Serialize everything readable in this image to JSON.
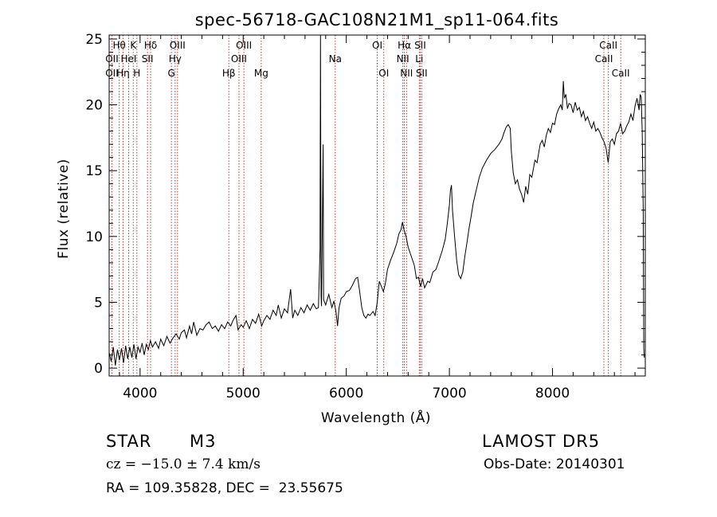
{
  "chart_data": {
    "type": "line",
    "title": "spec-56718-GAC108N21M1_sp11-064.fits",
    "xlabel": "Wavelength (Å)",
    "ylabel": "Flux (relative)",
    "xlim": [
      3700,
      8900
    ],
    "ylim": [
      -0.6,
      25.3
    ],
    "xticks": [
      4000,
      5000,
      6000,
      7000,
      8000
    ],
    "yticks": [
      0,
      5,
      10,
      15,
      20,
      25
    ],
    "x_minor_step": 200,
    "y_minor_step": 1,
    "grid": false,
    "legend": "none",
    "series": [
      {
        "values": [
          [
            3700,
            1.2
          ],
          [
            3720,
            0.5
          ],
          [
            3740,
            1.6
          ],
          [
            3760,
            0.2
          ],
          [
            3780,
            1.4
          ],
          [
            3800,
            0.6
          ],
          [
            3820,
            1.5
          ],
          [
            3840,
            0.4
          ],
          [
            3860,
            1.7
          ],
          [
            3880,
            0.7
          ],
          [
            3900,
            1.6
          ],
          [
            3920,
            0.8
          ],
          [
            3940,
            1.8
          ],
          [
            3960,
            0.7
          ],
          [
            3980,
            1.6
          ],
          [
            4000,
            1.2
          ],
          [
            4020,
            1.9
          ],
          [
            4040,
            1.0
          ],
          [
            4060,
            1.8
          ],
          [
            4080,
            1.4
          ],
          [
            4100,
            2.1
          ],
          [
            4120,
            1.6
          ],
          [
            4150,
            2.0
          ],
          [
            4180,
            1.5
          ],
          [
            4200,
            2.2
          ],
          [
            4230,
            1.7
          ],
          [
            4260,
            2.4
          ],
          [
            4290,
            1.9
          ],
          [
            4320,
            2.3
          ],
          [
            4350,
            2.6
          ],
          [
            4380,
            2.2
          ],
          [
            4400,
            2.7
          ],
          [
            4430,
            2.9
          ],
          [
            4450,
            2.3
          ],
          [
            4480,
            3.2
          ],
          [
            4500,
            2.6
          ],
          [
            4520,
            3.5
          ],
          [
            4550,
            2.5
          ],
          [
            4580,
            3.0
          ],
          [
            4610,
            2.9
          ],
          [
            4640,
            3.3
          ],
          [
            4670,
            3.5
          ],
          [
            4700,
            3.0
          ],
          [
            4730,
            3.2
          ],
          [
            4760,
            2.8
          ],
          [
            4790,
            3.3
          ],
          [
            4820,
            3.0
          ],
          [
            4850,
            3.5
          ],
          [
            4880,
            3.2
          ],
          [
            4900,
            3.6
          ],
          [
            4930,
            4.0
          ],
          [
            4950,
            2.9
          ],
          [
            4980,
            3.3
          ],
          [
            5000,
            3.1
          ],
          [
            5030,
            3.6
          ],
          [
            5060,
            3.0
          ],
          [
            5090,
            3.7
          ],
          [
            5120,
            3.4
          ],
          [
            5150,
            4.1
          ],
          [
            5180,
            3.2
          ],
          [
            5200,
            3.6
          ],
          [
            5230,
            4.0
          ],
          [
            5260,
            3.7
          ],
          [
            5290,
            4.4
          ],
          [
            5320,
            4.0
          ],
          [
            5340,
            4.8
          ],
          [
            5370,
            3.8
          ],
          [
            5400,
            4.5
          ],
          [
            5430,
            4.2
          ],
          [
            5460,
            6.0
          ],
          [
            5480,
            3.8
          ],
          [
            5500,
            4.4
          ],
          [
            5530,
            4.0
          ],
          [
            5560,
            4.6
          ],
          [
            5590,
            4.2
          ],
          [
            5620,
            4.8
          ],
          [
            5650,
            4.4
          ],
          [
            5680,
            4.9
          ],
          [
            5710,
            4.5
          ],
          [
            5730,
            4.6
          ],
          [
            5745,
            9.0
          ],
          [
            5750,
            25.3
          ],
          [
            5755,
            5.5
          ],
          [
            5760,
            4.7
          ],
          [
            5775,
            17.0
          ],
          [
            5780,
            5.2
          ],
          [
            5800,
            4.8
          ],
          [
            5830,
            5.6
          ],
          [
            5860,
            4.6
          ],
          [
            5880,
            5.1
          ],
          [
            5900,
            4.3
          ],
          [
            5915,
            3.2
          ],
          [
            5930,
            4.6
          ],
          [
            5950,
            5.3
          ],
          [
            5980,
            5.5
          ],
          [
            6000,
            5.8
          ],
          [
            6030,
            5.9
          ],
          [
            6060,
            6.3
          ],
          [
            6090,
            6.8
          ],
          [
            6110,
            6.9
          ],
          [
            6130,
            5.8
          ],
          [
            6150,
            4.6
          ],
          [
            6170,
            4.0
          ],
          [
            6190,
            3.8
          ],
          [
            6210,
            4.1
          ],
          [
            6230,
            4.0
          ],
          [
            6260,
            4.3
          ],
          [
            6280,
            4.0
          ],
          [
            6300,
            5.0
          ],
          [
            6320,
            6.6
          ],
          [
            6340,
            6.2
          ],
          [
            6360,
            5.8
          ],
          [
            6380,
            6.5
          ],
          [
            6400,
            7.5
          ],
          [
            6430,
            8.2
          ],
          [
            6460,
            8.8
          ],
          [
            6490,
            9.5
          ],
          [
            6510,
            10.2
          ],
          [
            6530,
            10.5
          ],
          [
            6545,
            11.1
          ],
          [
            6560,
            10.5
          ],
          [
            6580,
            10.0
          ],
          [
            6600,
            9.2
          ],
          [
            6630,
            8.5
          ],
          [
            6660,
            7.8
          ],
          [
            6680,
            6.8
          ],
          [
            6700,
            6.9
          ],
          [
            6720,
            6.2
          ],
          [
            6740,
            6.8
          ],
          [
            6760,
            6.1
          ],
          [
            6790,
            6.6
          ],
          [
            6810,
            6.5
          ],
          [
            6840,
            7.3
          ],
          [
            6870,
            7.5
          ],
          [
            6900,
            8.2
          ],
          [
            6930,
            8.9
          ],
          [
            6960,
            9.8
          ],
          [
            6980,
            11.0
          ],
          [
            7000,
            12.4
          ],
          [
            7010,
            13.5
          ],
          [
            7020,
            13.9
          ],
          [
            7030,
            12.0
          ],
          [
            7050,
            10.0
          ],
          [
            7070,
            8.2
          ],
          [
            7090,
            7.1
          ],
          [
            7110,
            6.8
          ],
          [
            7130,
            7.3
          ],
          [
            7150,
            8.5
          ],
          [
            7170,
            9.5
          ],
          [
            7190,
            10.6
          ],
          [
            7210,
            11.5
          ],
          [
            7230,
            12.5
          ],
          [
            7260,
            13.5
          ],
          [
            7290,
            14.5
          ],
          [
            7320,
            15.2
          ],
          [
            7360,
            15.8
          ],
          [
            7400,
            16.3
          ],
          [
            7440,
            16.6
          ],
          [
            7480,
            17.0
          ],
          [
            7510,
            17.4
          ],
          [
            7530,
            17.9
          ],
          [
            7550,
            18.3
          ],
          [
            7570,
            18.5
          ],
          [
            7590,
            18.2
          ],
          [
            7600,
            16.5
          ],
          [
            7620,
            14.8
          ],
          [
            7640,
            14.0
          ],
          [
            7660,
            14.3
          ],
          [
            7680,
            13.6
          ],
          [
            7700,
            13.2
          ],
          [
            7720,
            12.6
          ],
          [
            7740,
            13.8
          ],
          [
            7760,
            13.2
          ],
          [
            7780,
            14.7
          ],
          [
            7800,
            14.5
          ],
          [
            7830,
            15.8
          ],
          [
            7850,
            15.6
          ],
          [
            7880,
            17.0
          ],
          [
            7900,
            17.3
          ],
          [
            7920,
            16.8
          ],
          [
            7940,
            17.7
          ],
          [
            7960,
            18.2
          ],
          [
            7980,
            17.9
          ],
          [
            8000,
            18.6
          ],
          [
            8020,
            18.5
          ],
          [
            8040,
            19.3
          ],
          [
            8060,
            19.7
          ],
          [
            8080,
            20.0
          ],
          [
            8095,
            19.6
          ],
          [
            8105,
            21.8
          ],
          [
            8115,
            20.5
          ],
          [
            8130,
            20.8
          ],
          [
            8145,
            19.7
          ],
          [
            8160,
            20.1
          ],
          [
            8180,
            20.0
          ],
          [
            8200,
            19.4
          ],
          [
            8220,
            20.2
          ],
          [
            8240,
            19.6
          ],
          [
            8260,
            19.8
          ],
          [
            8280,
            19.1
          ],
          [
            8300,
            19.5
          ],
          [
            8320,
            18.8
          ],
          [
            8340,
            19.1
          ],
          [
            8360,
            18.6
          ],
          [
            8380,
            18.2
          ],
          [
            8400,
            18.7
          ],
          [
            8420,
            18.0
          ],
          [
            8440,
            18.2
          ],
          [
            8460,
            17.9
          ],
          [
            8480,
            17.5
          ],
          [
            8500,
            17.2
          ],
          [
            8520,
            16.7
          ],
          [
            8540,
            15.6
          ],
          [
            8560,
            17.2
          ],
          [
            8580,
            17.4
          ],
          [
            8600,
            17.0
          ],
          [
            8620,
            17.8
          ],
          [
            8640,
            18.0
          ],
          [
            8660,
            18.6
          ],
          [
            8680,
            17.8
          ],
          [
            8700,
            18.0
          ],
          [
            8720,
            18.4
          ],
          [
            8740,
            18.7
          ],
          [
            8760,
            19.3
          ],
          [
            8780,
            18.8
          ],
          [
            8800,
            19.9
          ],
          [
            8820,
            20.5
          ],
          [
            8840,
            19.6
          ],
          [
            8850,
            20.8
          ],
          [
            8860,
            20.6
          ],
          [
            8870,
            18.0
          ],
          [
            8880,
            12.0
          ],
          [
            8885,
            1.5
          ],
          [
            8890,
            0.8
          ]
        ]
      }
    ],
    "lines": [
      {
        "name": "OII",
        "wl": 3727,
        "row": 2
      },
      {
        "name": "OII",
        "wl": 3727,
        "row": 3
      },
      {
        "name": "Hθ",
        "wl": 3798,
        "row": 1
      },
      {
        "name": "Hη",
        "wl": 3835,
        "row": 3
      },
      {
        "name": "HeI",
        "wl": 3889,
        "row": 2
      },
      {
        "name": "K",
        "wl": 3934,
        "row": 1
      },
      {
        "name": "H",
        "wl": 3969,
        "row": 3
      },
      {
        "name": "Hδ",
        "wl": 4102,
        "row": 1
      },
      {
        "name": "SII",
        "wl": 4072,
        "row": 2
      },
      {
        "name": "OIII",
        "wl": 4363,
        "row": 1
      },
      {
        "name": "Hγ",
        "wl": 4340,
        "row": 2
      },
      {
        "name": "G",
        "wl": 4304,
        "row": 3
      },
      {
        "name": "Hβ",
        "wl": 4861,
        "row": 3
      },
      {
        "name": "OIII",
        "wl": 5007,
        "row": 1
      },
      {
        "name": "OIII",
        "wl": 4959,
        "row": 2
      },
      {
        "name": "Mg",
        "wl": 5175,
        "row": 3
      },
      {
        "name": "Na",
        "wl": 5893,
        "row": 2
      },
      {
        "name": "OI",
        "wl": 6300,
        "row": 1
      },
      {
        "name": "OI",
        "wl": 6364,
        "row": 3
      },
      {
        "name": "Hα",
        "wl": 6563,
        "row": 1
      },
      {
        "name": "NII",
        "wl": 6548,
        "row": 2
      },
      {
        "name": "NII",
        "wl": 6584,
        "row": 3
      },
      {
        "name": "SII",
        "wl": 6717,
        "row": 1
      },
      {
        "name": "Li",
        "wl": 6708,
        "row": 2
      },
      {
        "name": "SII",
        "wl": 6731,
        "row": 3
      },
      {
        "name": "CaII",
        "wl": 8542,
        "row": 1
      },
      {
        "name": "CaII",
        "wl": 8498,
        "row": 2
      },
      {
        "name": "CaII",
        "wl": 8662,
        "row": 3
      }
    ]
  },
  "info": {
    "object_class": "STAR",
    "subclass": "M3",
    "survey": "LAMOST DR5",
    "velocity": "cz = −15.0 ± 7.4 km/s",
    "obs_date": "Obs-Date: 20140301",
    "coordinates": "RA = 109.35828, DEC =  23.55675"
  },
  "colors": {
    "line_marker": "#c0392b",
    "spectrum": "#000000"
  }
}
